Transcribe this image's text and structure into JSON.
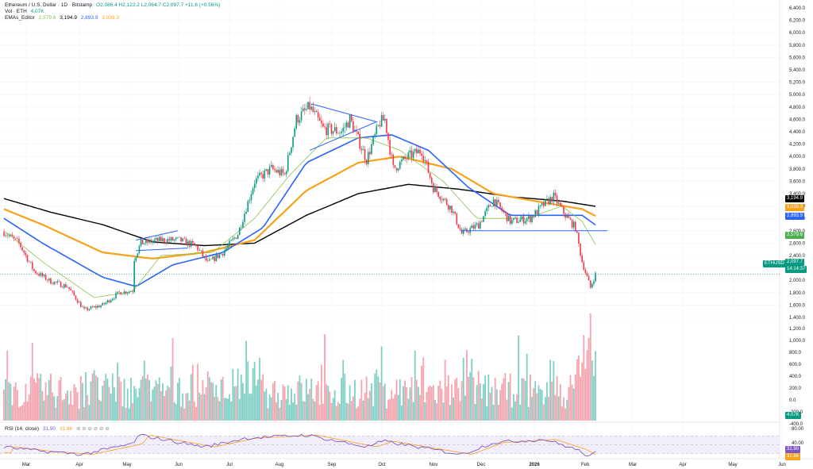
{
  "header": {
    "symbol": "Ethereum / U.S. Dollar · 1D · Bitstamp",
    "ohlc": "O2,086.4  H2,122.2  L2,064.7  C2,097.7  +11.6 (+0.56%)",
    "volume_label": "Vol · ETH",
    "volume_value": "4.07K",
    "emas_label": "EMAs_Editor",
    "ema_values": [
      "2,579.6",
      "3,194.9",
      "2,893.9",
      "3,039.3"
    ],
    "rsi_label": "RSI (14, close)",
    "rsi_values": [
      "31.90",
      "31.86"
    ]
  },
  "price_tags": {
    "ema200": "3,194.9",
    "ema100": "3,039.3",
    "ema50": "2,893.9",
    "ema20": "2,579.6",
    "symbol_tag": "ETHUSD",
    "last_price": "2,097.7",
    "countdown": "14:14:37",
    "volume_tag": "4.07K",
    "rsi_tag1": "31.90",
    "rsi_tag2": "31.86",
    "rsi_80": "80.00",
    "rsi_40": "40.00"
  },
  "colors": {
    "up": "#089981",
    "down": "#f23645",
    "ema20": "#8bc34a",
    "ema50": "#2962ff",
    "ema100": "#f7a21b",
    "ema200": "#000000",
    "rsi": "#7e57c2",
    "volume_up": "#7fcfc6",
    "volume_down": "#f5a3ad"
  },
  "chart_data": {
    "type": "candlestick",
    "x_ticks": [
      "Mar",
      "Apr",
      "May",
      "Jun",
      "Jul",
      "Aug",
      "Sep",
      "Oct",
      "Nov",
      "Dec",
      "2026",
      "Feb",
      "Mar",
      "Apr",
      "May",
      "Jun"
    ],
    "price_axis": [
      "6,400.0",
      "6,200.0",
      "6,000.0",
      "5,800.0",
      "5,600.0",
      "5,400.0",
      "5,200.0",
      "5,000.0",
      "4,800.0",
      "4,600.0",
      "4,400.0",
      "4,200.0",
      "4,000.0",
      "3,800.0",
      "3,600.0",
      "3,400.0",
      "3,200.0",
      "3,000.0",
      "2,800.0",
      "2,600.0",
      "2,400.0",
      "2,200.0",
      "2,000.0",
      "1,800.0",
      "1,600.0",
      "1,400.0"
    ],
    "volume_axis": [
      "1,200.0",
      "1,000.0",
      "800.0",
      "600.0",
      "400.0",
      "200.0",
      "0.0",
      "-200.0",
      "-400.0"
    ],
    "rsi_axis": [
      "80.00",
      "40.00"
    ],
    "price_anchors": [
      [
        "Feb 20",
        2780
      ],
      [
        "Mar 1",
        2600
      ],
      [
        "Mar 10",
        2150
      ],
      [
        "Mar 20",
        1980
      ],
      [
        "Mar 30",
        1900
      ],
      [
        "Apr 9",
        1520
      ],
      [
        "Apr 20",
        1600
      ],
      [
        "Apr 30",
        1800
      ],
      [
        "May 8",
        1830
      ],
      [
        "May 9",
        2350
      ],
      [
        "May 13",
        2600
      ],
      [
        "May 25",
        2650
      ],
      [
        "Jun 5",
        2650
      ],
      [
        "Jun 15",
        2550
      ],
      [
        "Jun 22",
        2280
      ],
      [
        "Jul 1",
        2450
      ],
      [
        "Jul 10",
        2750
      ],
      [
        "Jul 20",
        3600
      ],
      [
        "Jul 30",
        3800
      ],
      [
        "Aug 7",
        3700
      ],
      [
        "Aug 14",
        4600
      ],
      [
        "Aug 22",
        4800
      ],
      [
        "Aug 30",
        4450
      ],
      [
        "Sep 10",
        4400
      ],
      [
        "Sep 15",
        4600
      ],
      [
        "Sep 25",
        3950
      ],
      [
        "Oct 3",
        4550
      ],
      [
        "Oct 6",
        4600
      ],
      [
        "Oct 11",
        3800
      ],
      [
        "Oct 20",
        4000
      ],
      [
        "Oct 28",
        4100
      ],
      [
        "Nov 4",
        3500
      ],
      [
        "Nov 15",
        3150
      ],
      [
        "Nov 21",
        2750
      ],
      [
        "Dec 1",
        2900
      ],
      [
        "Dec 10",
        3300
      ],
      [
        "Dec 20",
        2950
      ],
      [
        "Jan 1",
        3000
      ],
      [
        "Jan 10",
        3250
      ],
      [
        "Jan 15",
        3350
      ],
      [
        "Jan 22",
        3050
      ],
      [
        "Jan 28",
        2850
      ],
      [
        "Feb 1",
        2300
      ],
      [
        "Feb 6",
        1880
      ],
      [
        "Feb 9",
        2098
      ]
    ],
    "ema20_anchors": [
      [
        "Feb 20",
        2800
      ],
      [
        "Mar 15",
        2300
      ],
      [
        "Apr 15",
        1720
      ],
      [
        "May 8",
        1820
      ],
      [
        "May 25",
        2400
      ],
      [
        "Jun 25",
        2450
      ],
      [
        "Jul 20",
        3000
      ],
      [
        "Aug 10",
        3700
      ],
      [
        "Sep 1",
        4300
      ],
      [
        "Sep 25",
        4300
      ],
      [
        "Oct 15",
        4100
      ],
      [
        "Nov 10",
        3600
      ],
      [
        "Nov 30",
        3000
      ],
      [
        "Dec 30",
        3000
      ],
      [
        "Jan 20",
        3200
      ],
      [
        "Feb 1",
        2950
      ],
      [
        "Feb 9",
        2580
      ]
    ],
    "ema50_anchors": [
      [
        "Feb 20",
        3000
      ],
      [
        "Mar 15",
        2600
      ],
      [
        "Apr 20",
        2050
      ],
      [
        "May 10",
        1900
      ],
      [
        "Jun 1",
        2250
      ],
      [
        "Jul 1",
        2450
      ],
      [
        "Jul 25",
        2850
      ],
      [
        "Aug 20",
        3900
      ],
      [
        "Sep 20",
        4300
      ],
      [
        "Oct 10",
        4350
      ],
      [
        "Nov 1",
        4100
      ],
      [
        "Nov 25",
        3500
      ],
      [
        "Dec 20",
        3050
      ],
      [
        "Jan 15",
        3050
      ],
      [
        "Feb 1",
        3050
      ],
      [
        "Feb 9",
        2894
      ]
    ],
    "ema100_anchors": [
      [
        "Feb 20",
        3150
      ],
      [
        "Mar 15",
        2900
      ],
      [
        "Apr 20",
        2450
      ],
      [
        "May 20",
        2350
      ],
      [
        "Jun 20",
        2450
      ],
      [
        "Jul 20",
        2650
      ],
      [
        "Aug 20",
        3450
      ],
      [
        "Sep 20",
        3900
      ],
      [
        "Oct 15",
        4000
      ],
      [
        "Nov 15",
        3800
      ],
      [
        "Dec 10",
        3400
      ],
      [
        "Jan 10",
        3250
      ],
      [
        "Feb 1",
        3150
      ],
      [
        "Feb 9",
        3039
      ]
    ],
    "ema200_anchors": [
      [
        "Feb 20",
        3320
      ],
      [
        "Mar 20",
        3100
      ],
      [
        "Apr 20",
        2900
      ],
      [
        "May 20",
        2620
      ],
      [
        "Jun 20",
        2560
      ],
      [
        "Jul 20",
        2600
      ],
      [
        "Aug 20",
        3050
      ],
      [
        "Sep 20",
        3400
      ],
      [
        "Oct 20",
        3550
      ],
      [
        "Nov 20",
        3470
      ],
      [
        "Dec 20",
        3350
      ],
      [
        "Jan 20",
        3280
      ],
      [
        "Feb 9",
        3195
      ]
    ],
    "drawings": {
      "triangle_flag_may": [
        [
          "May 10",
          2650
        ],
        [
          "Jun 4",
          2800
        ],
        [
          "May 10",
          2480
        ],
        [
          "Jun 10",
          2520
        ]
      ],
      "triangle_aug": [
        [
          "Aug 23",
          4850
        ],
        [
          "Oct 1",
          4560
        ],
        [
          "Aug 22",
          4100
        ]
      ],
      "support_line": [
        [
          "Nov 20",
          2800
        ],
        [
          "Feb 13",
          2800
        ]
      ]
    },
    "rsi_anchors": [
      [
        "Feb 20",
        45
      ],
      [
        "Mar 15",
        35
      ],
      [
        "Apr 8",
        28
      ],
      [
        "May 8",
        52
      ],
      [
        "May 12",
        72
      ],
      [
        "Jun 20",
        45
      ],
      [
        "Jul 15",
        65
      ],
      [
        "Aug 20",
        72
      ],
      [
        "Sep 25",
        45
      ],
      [
        "Oct 5",
        58
      ],
      [
        "Nov 5",
        38
      ],
      [
        "Nov 21",
        28
      ],
      [
        "Dec 10",
        55
      ],
      [
        "Jan 10",
        62
      ],
      [
        "Jan 28",
        40
      ],
      [
        "Feb 6",
        22
      ],
      [
        "Feb 9",
        32
      ]
    ]
  }
}
